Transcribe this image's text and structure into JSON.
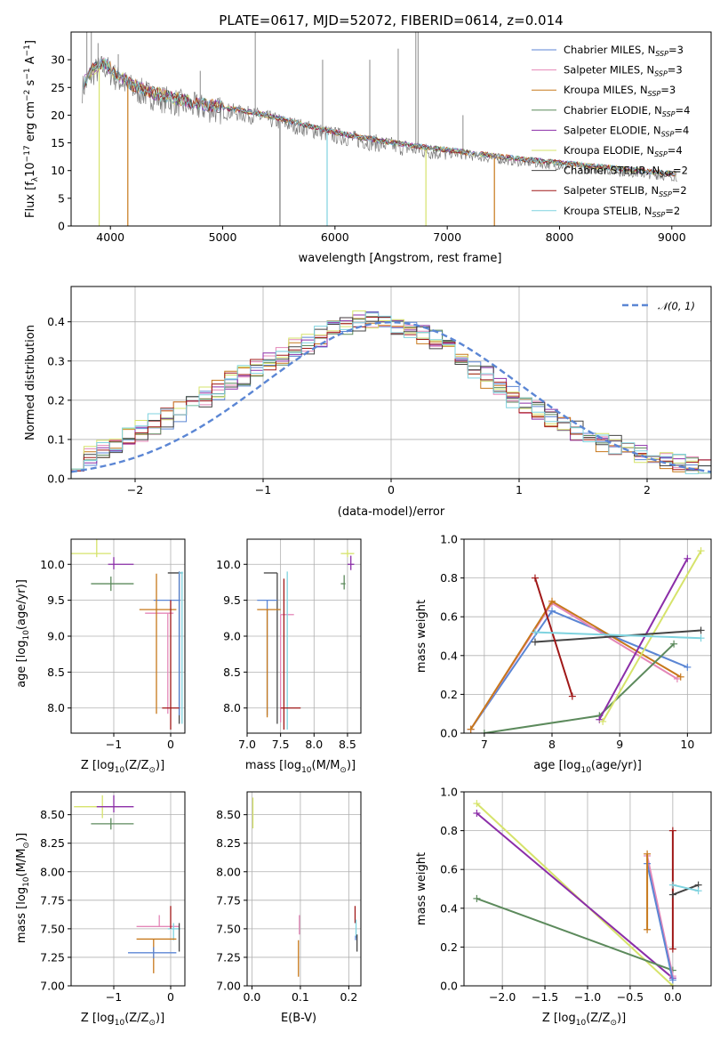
{
  "figure_title": "PLATE=0617, MJD=52072, FIBERID=0614, z=0.014",
  "models": [
    {
      "name": "Chabrier MILES",
      "nssp": "3",
      "color": "#5b86d4"
    },
    {
      "name": "Salpeter MILES",
      "nssp": "3",
      "color": "#e487b8"
    },
    {
      "name": "Kroupa MILES",
      "nssp": "3",
      "color": "#c7781b"
    },
    {
      "name": "Chabrier ELODIE",
      "nssp": "4",
      "color": "#5c8a5c"
    },
    {
      "name": "Salpeter ELODIE",
      "nssp": "4",
      "color": "#8b2ea8"
    },
    {
      "name": "Kroupa ELODIE",
      "nssp": "4",
      "color": "#d6e36b"
    },
    {
      "name": "Chabrier STELIB",
      "nssp": "2",
      "color": "#444444"
    },
    {
      "name": "Salpeter STELIB",
      "nssp": "2",
      "color": "#a01818"
    },
    {
      "name": "Kroupa STELIB",
      "nssp": "2",
      "color": "#7fd3df"
    }
  ],
  "legend_prefix_nssp": "N",
  "legend_sub_nssp": "SSP",
  "chart_data": [
    {
      "id": "spectrum",
      "type": "line",
      "xlabel": "wavelength [Angstrom, rest frame]",
      "ylabel_parts": [
        "Flux [f",
        "λ",
        "10",
        "−17",
        " erg cm",
        "−2",
        " s",
        "−1",
        " A",
        "−1",
        "]"
      ],
      "xlim": [
        3650,
        9350
      ],
      "ylim": [
        0,
        35
      ],
      "xticks": [
        4000,
        5000,
        6000,
        7000,
        8000,
        9000
      ],
      "yticks": [
        0,
        5,
        10,
        15,
        20,
        25,
        30
      ],
      "legend": "top-right",
      "continuum": {
        "x": [
          3750,
          3850,
          3950,
          4050,
          4200,
          4400,
          4700,
          5000,
          5300,
          5600,
          6000,
          6400,
          6800,
          7200,
          7600,
          8000,
          8500,
          9050
        ],
        "y": [
          25,
          28,
          29,
          27,
          25,
          23.5,
          22,
          21,
          20,
          18.5,
          16.5,
          15,
          13.8,
          12.8,
          11.8,
          11,
          10,
          9
        ]
      },
      "drops": [
        {
          "x": 3900,
          "y": 0,
          "color": "#d6e36b"
        },
        {
          "x": 4155,
          "y": 0,
          "color": "#c7781b"
        },
        {
          "x": 5930,
          "y": 0,
          "color": "#7fd3df"
        },
        {
          "x": 6810,
          "y": 0,
          "color": "#d6e36b"
        },
        {
          "x": 7420,
          "y": 0,
          "color": "#c7781b"
        },
        {
          "x": 5510,
          "y": 0,
          "color": "#777777"
        }
      ],
      "spikes": [
        {
          "x": 3790,
          "y": 35
        },
        {
          "x": 3830,
          "y": 35
        },
        {
          "x": 3890,
          "y": 33
        },
        {
          "x": 4070,
          "y": 31
        },
        {
          "x": 4800,
          "y": 28
        },
        {
          "x": 5290,
          "y": 35
        },
        {
          "x": 5890,
          "y": 30
        },
        {
          "x": 6310,
          "y": 30
        },
        {
          "x": 6563,
          "y": 32
        },
        {
          "x": 6720,
          "y": 35
        },
        {
          "x": 6740,
          "y": 35
        },
        {
          "x": 7140,
          "y": 20
        }
      ]
    },
    {
      "id": "residuals",
      "type": "histogram",
      "xlabel": "(data-model)/error",
      "ylabel": "Normed distribution",
      "xlim": [
        -2.5,
        2.5
      ],
      "ylim": [
        0,
        0.49
      ],
      "xticks": [
        -2,
        -1,
        0,
        1,
        2
      ],
      "yticks": [
        0.0,
        0.1,
        0.2,
        0.3,
        0.4
      ],
      "bin_width": 0.1,
      "legend": "top-right",
      "legend_label": "𝒩(0, 1)",
      "normal_curve": {
        "mean": 0,
        "sigma": 1,
        "color": "#5b86d4"
      },
      "base_profile": {
        "x": [
          -2.45,
          -2.0,
          -1.5,
          -1.0,
          -0.5,
          -0.2,
          0.0,
          0.3,
          0.5,
          1.0,
          1.5,
          2.0,
          2.45
        ],
        "y": [
          0.045,
          0.11,
          0.2,
          0.29,
          0.37,
          0.41,
          0.395,
          0.36,
          0.32,
          0.2,
          0.11,
          0.055,
          0.03
        ]
      }
    },
    {
      "id": "age-vs-Z",
      "type": "errorbar",
      "xlabel_parts": [
        "Z [log",
        "10",
        "(Z/Z",
        "⊙",
        ")]"
      ],
      "ylabel_parts": [
        "age  [log",
        "10",
        "(age/yr)]"
      ],
      "xlim": [
        -1.75,
        0.25
      ],
      "ylim": [
        7.65,
        10.35
      ],
      "xticks": [
        -1,
        0
      ],
      "yticks": [
        8.0,
        8.5,
        9.0,
        9.5,
        10.0
      ],
      "points": [
        {
          "model": 5,
          "x": -1.3,
          "y": 10.15,
          "xerr": [
            0.45,
            0.25
          ],
          "yerr": [
            0.05,
            0.2
          ]
        },
        {
          "model": 4,
          "x": -1.0,
          "y": 10.0,
          "xerr": [
            0.1,
            0.35
          ],
          "yerr": [
            0.07,
            0.1
          ]
        },
        {
          "model": 3,
          "x": -1.05,
          "y": 9.73,
          "xerr": [
            0.35,
            0.4
          ],
          "yerr": [
            0.1,
            0.1
          ]
        },
        {
          "model": 6,
          "x": 0.15,
          "y": 9.88,
          "xerr": [
            0.2,
            0.05
          ],
          "yerr": [
            2.1,
            0.02
          ]
        },
        {
          "model": 0,
          "x": 0.15,
          "y": 9.5,
          "xerr": [
            0.45,
            0.02
          ],
          "yerr": [
            1.6,
            0.4
          ]
        },
        {
          "model": 1,
          "x": -0.05,
          "y": 9.32,
          "xerr": [
            0.4,
            0.1
          ],
          "yerr": [
            1.4,
            0.0
          ]
        },
        {
          "model": 2,
          "x": -0.25,
          "y": 9.37,
          "xerr": [
            0.3,
            0.35
          ],
          "yerr": [
            1.45,
            0.5
          ]
        },
        {
          "model": 8,
          "x": 0.2,
          "y": 9.88,
          "xerr": [
            0.05,
            0.02
          ],
          "yerr": [
            2.1,
            0.02
          ]
        },
        {
          "model": 7,
          "x": 0.0,
          "y": 8.0,
          "xerr": [
            0.15,
            0.15
          ],
          "yerr": [
            0.3,
            1.5
          ]
        }
      ]
    },
    {
      "id": "age-vs-mass",
      "type": "errorbar",
      "xlabel_parts": [
        "mass [log",
        "10",
        "(M/M",
        "⊙",
        ")]"
      ],
      "xlim": [
        7.0,
        8.7
      ],
      "ylim": [
        7.65,
        10.35
      ],
      "xticks": [
        7.0,
        7.5,
        8.0,
        8.5
      ],
      "yticks": [
        8.0,
        8.5,
        9.0,
        9.5,
        10.0
      ],
      "points": [
        {
          "model": 5,
          "x": 8.5,
          "y": 10.15,
          "xerr": [
            0.1,
            0.1
          ],
          "yerr": [
            0.05,
            0.05
          ]
        },
        {
          "model": 4,
          "x": 8.55,
          "y": 10.0,
          "xerr": [
            0.05,
            0.05
          ],
          "yerr": [
            0.08,
            0.12
          ]
        },
        {
          "model": 3,
          "x": 8.45,
          "y": 9.73,
          "xerr": [
            0.05,
            0.02
          ],
          "yerr": [
            0.08,
            0.12
          ]
        },
        {
          "model": 6,
          "x": 7.45,
          "y": 9.88,
          "xerr": [
            0.2,
            0.0
          ],
          "yerr": [
            2.1,
            0.0
          ]
        },
        {
          "model": 0,
          "x": 7.3,
          "y": 9.5,
          "xerr": [
            0.15,
            0.15
          ],
          "yerr": [
            1.6,
            0.0
          ]
        },
        {
          "model": 1,
          "x": 7.5,
          "y": 9.3,
          "xerr": [
            0.0,
            0.2
          ],
          "yerr": [
            1.5,
            0.0
          ]
        },
        {
          "model": 2,
          "x": 7.3,
          "y": 9.37,
          "xerr": [
            0.15,
            0.2
          ],
          "yerr": [
            1.5,
            0.0
          ]
        },
        {
          "model": 8,
          "x": 7.6,
          "y": 9.5,
          "xerr": [
            0.0,
            0.0
          ],
          "yerr": [
            1.8,
            0.4
          ]
        },
        {
          "model": 7,
          "x": 7.55,
          "y": 8.0,
          "xerr": [
            0.05,
            0.25
          ],
          "yerr": [
            0.3,
            1.8
          ]
        }
      ]
    },
    {
      "id": "weight-vs-age",
      "type": "line",
      "xlabel_parts": [
        "age  [log",
        "10",
        "(age/yr)]"
      ],
      "ylabel": "mass weight",
      "xlim": [
        6.7,
        10.35
      ],
      "ylim": [
        0,
        1
      ],
      "xticks": [
        7,
        8,
        9,
        10
      ],
      "yticks": [
        0.0,
        0.2,
        0.4,
        0.6,
        0.8,
        1.0
      ],
      "series": [
        {
          "model": 0,
          "x": [
            6.8,
            8.0,
            10.0
          ],
          "y": [
            0.02,
            0.63,
            0.34
          ]
        },
        {
          "model": 1,
          "x": [
            6.8,
            8.0,
            9.85
          ],
          "y": [
            0.02,
            0.67,
            0.28
          ]
        },
        {
          "model": 2,
          "x": [
            6.8,
            8.0,
            9.9
          ],
          "y": [
            0.02,
            0.68,
            0.29
          ]
        },
        {
          "model": 3,
          "x": [
            7.0,
            8.7,
            9.8
          ],
          "y": [
            0.0,
            0.09,
            0.46
          ]
        },
        {
          "model": 4,
          "x": [
            8.7,
            10.0
          ],
          "y": [
            0.07,
            0.9
          ]
        },
        {
          "model": 5,
          "x": [
            8.75,
            10.2
          ],
          "y": [
            0.06,
            0.94
          ]
        },
        {
          "model": 6,
          "x": [
            7.75,
            10.2
          ],
          "y": [
            0.47,
            0.53
          ]
        },
        {
          "model": 7,
          "x": [
            7.75,
            8.3
          ],
          "y": [
            0.8,
            0.19
          ]
        },
        {
          "model": 8,
          "x": [
            7.75,
            10.2
          ],
          "y": [
            0.52,
            0.49
          ]
        }
      ]
    },
    {
      "id": "mass-vs-Z",
      "type": "errorbar",
      "xlabel_parts": [
        "Z [log",
        "10",
        "(Z/Z",
        "⊙",
        ")]"
      ],
      "ylabel_parts": [
        "mass [log",
        "10",
        "(M/M",
        "⊙",
        ")]"
      ],
      "xlim": [
        -1.75,
        0.25
      ],
      "ylim": [
        7.0,
        8.7
      ],
      "xticks": [
        -1,
        0
      ],
      "yticks": [
        7.0,
        7.25,
        7.5,
        7.75,
        8.0,
        8.25,
        8.5
      ],
      "points": [
        {
          "model": 5,
          "x": -1.2,
          "y": 8.57,
          "xerr": [
            0.5,
            0.3
          ],
          "yerr": [
            0.1,
            0.1
          ]
        },
        {
          "model": 4,
          "x": -1.0,
          "y": 8.57,
          "xerr": [
            0.3,
            0.35
          ],
          "yerr": [
            0.05,
            0.1
          ]
        },
        {
          "model": 3,
          "x": -1.05,
          "y": 8.42,
          "xerr": [
            0.35,
            0.4
          ],
          "yerr": [
            0.05,
            0.05
          ]
        },
        {
          "model": 1,
          "x": -0.2,
          "y": 7.52,
          "xerr": [
            0.4,
            0.35
          ],
          "yerr": [
            0.0,
            0.1
          ]
        },
        {
          "model": 8,
          "x": 0.05,
          "y": 7.5,
          "xerr": [
            0.1,
            0.12
          ],
          "yerr": [
            0.1,
            0.05
          ]
        },
        {
          "model": 2,
          "x": -0.3,
          "y": 7.41,
          "xerr": [
            0.3,
            0.4
          ],
          "yerr": [
            0.3,
            0.0
          ]
        },
        {
          "model": 0,
          "x": -0.3,
          "y": 7.29,
          "xerr": [
            0.45,
            0.4
          ],
          "yerr": [
            0.05,
            0.05
          ]
        },
        {
          "model": 7,
          "x": 0.0,
          "y": 7.6,
          "xerr": [
            0.0,
            0.0
          ],
          "yerr": [
            0.1,
            0.1
          ]
        },
        {
          "model": 6,
          "x": 0.15,
          "y": 7.45,
          "xerr": [
            0.0,
            0.0
          ],
          "yerr": [
            0.15,
            0.1
          ]
        }
      ]
    },
    {
      "id": "mass-vs-ebv",
      "type": "errorbar",
      "xlabel": "E(B-V)",
      "xlim": [
        -0.01,
        0.225
      ],
      "ylim": [
        7.0,
        8.7
      ],
      "xticks": [
        0.0,
        0.1,
        0.2
      ],
      "yticks": [
        7.0,
        7.25,
        7.5,
        7.75,
        8.0,
        8.25,
        8.5
      ],
      "points": [
        {
          "model": 5,
          "x": 0.002,
          "y": 8.5,
          "xerr": [
            0,
            0
          ],
          "yerr": [
            0.12,
            0.15
          ]
        },
        {
          "model": 1,
          "x": 0.098,
          "y": 7.5,
          "xerr": [
            0,
            0
          ],
          "yerr": [
            0.05,
            0.12
          ]
        },
        {
          "model": 2,
          "x": 0.096,
          "y": 7.3,
          "xerr": [
            0,
            0
          ],
          "yerr": [
            0.22,
            0.1
          ]
        },
        {
          "model": 7,
          "x": 0.213,
          "y": 7.6,
          "xerr": [
            0,
            0
          ],
          "yerr": [
            0.05,
            0.1
          ]
        },
        {
          "model": 8,
          "x": 0.215,
          "y": 7.5,
          "xerr": [
            0,
            0
          ],
          "yerr": [
            0.08,
            0.08
          ]
        },
        {
          "model": 6,
          "x": 0.217,
          "y": 7.4,
          "xerr": [
            0,
            0
          ],
          "yerr": [
            0.1,
            0.05
          ]
        },
        {
          "model": 0,
          "x": 0.214,
          "y": 7.42,
          "xerr": [
            0,
            0
          ],
          "yerr": [
            0.02,
            0.02
          ]
        }
      ]
    },
    {
      "id": "weight-vs-Z",
      "type": "line",
      "xlabel_parts": [
        "Z [log",
        "10",
        "(Z/Z",
        "⊙",
        ")]"
      ],
      "ylabel": "mass weight",
      "xlim": [
        -2.45,
        0.45
      ],
      "ylim": [
        0,
        1
      ],
      "xticks": [
        -2.0,
        -1.5,
        -1.0,
        -0.5,
        0.0
      ],
      "xticklabels": [
        "−2.0",
        "−1.5",
        "−1.0",
        "−0.5",
        "0.0"
      ],
      "yticks": [
        0.0,
        0.2,
        0.4,
        0.6,
        0.8,
        1.0
      ],
      "series": [
        {
          "model": 5,
          "x": [
            -2.3,
            0.0
          ],
          "y": [
            0.94,
            0.0
          ]
        },
        {
          "model": 4,
          "x": [
            -2.3,
            0.0
          ],
          "y": [
            0.89,
            0.04
          ]
        },
        {
          "model": 3,
          "x": [
            -2.3,
            0.0
          ],
          "y": [
            0.45,
            0.08
          ]
        },
        {
          "model": 1,
          "x": [
            -0.3,
            0.0
          ],
          "y": [
            0.67,
            0.05
          ]
        },
        {
          "model": 0,
          "x": [
            -0.3,
            0.0
          ],
          "y": [
            0.63,
            0.03
          ]
        },
        {
          "model": 2,
          "x": [
            -0.3,
            -0.3
          ],
          "y": [
            0.68,
            0.29
          ]
        },
        {
          "model": 7,
          "x": [
            0.0,
            0.0
          ],
          "y": [
            0.8,
            0.19
          ]
        },
        {
          "model": 6,
          "x": [
            0.0,
            0.3
          ],
          "y": [
            0.47,
            0.52
          ]
        },
        {
          "model": 8,
          "x": [
            0.0,
            0.3
          ],
          "y": [
            0.52,
            0.49
          ]
        }
      ]
    }
  ]
}
